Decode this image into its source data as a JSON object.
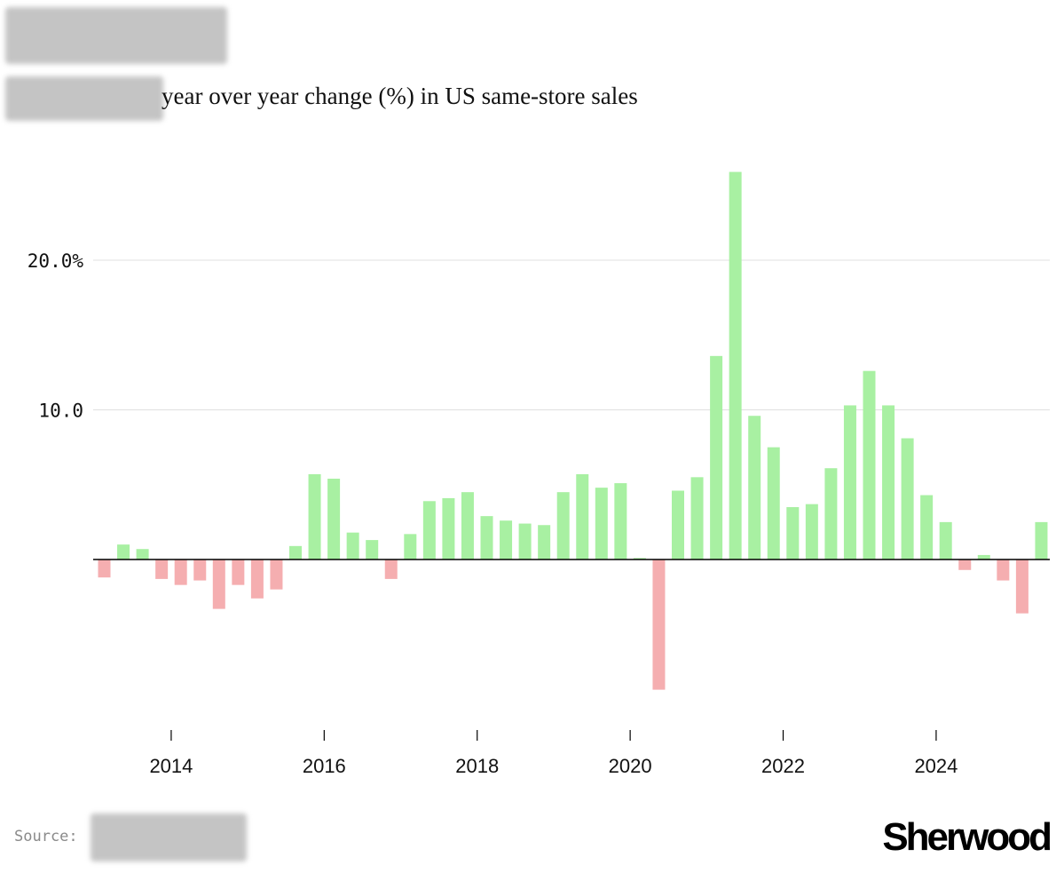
{
  "subtitle": "year over year change (%) in US same-store sales",
  "source_label": "Source:",
  "brand": "Sherwood",
  "colors": {
    "positive": "#a8f0a2",
    "negative": "#f5aeb0",
    "grid": "#e0e0e0",
    "axis": "#000000"
  },
  "chart_data": {
    "type": "bar",
    "title": "",
    "xlabel": "",
    "ylabel": "",
    "ylim": [
      -11,
      26
    ],
    "yticks": [
      {
        "value": 10,
        "label": "10.0"
      },
      {
        "value": 20,
        "label": "20.0%"
      }
    ],
    "xticks": [
      {
        "year": 2014,
        "label": "2014"
      },
      {
        "year": 2016,
        "label": "2016"
      },
      {
        "year": 2018,
        "label": "2018"
      },
      {
        "year": 2020,
        "label": "2020"
      },
      {
        "year": 2022,
        "label": "2022"
      },
      {
        "year": 2024,
        "label": "2024"
      }
    ],
    "grid": true,
    "x_unit": "quarter",
    "categories": [
      "2013 Q1",
      "2013 Q2",
      "2013 Q3",
      "2013 Q4",
      "2014 Q1",
      "2014 Q2",
      "2014 Q3",
      "2014 Q4",
      "2015 Q1",
      "2015 Q2",
      "2015 Q3",
      "2015 Q4",
      "2016 Q1",
      "2016 Q2",
      "2016 Q3",
      "2016 Q4",
      "2017 Q1",
      "2017 Q2",
      "2017 Q3",
      "2017 Q4",
      "2018 Q1",
      "2018 Q2",
      "2018 Q3",
      "2018 Q4",
      "2019 Q1",
      "2019 Q2",
      "2019 Q3",
      "2019 Q4",
      "2020 Q1",
      "2020 Q2",
      "2020 Q3",
      "2020 Q4",
      "2021 Q1",
      "2021 Q2",
      "2021 Q3",
      "2021 Q4",
      "2022 Q1",
      "2022 Q2",
      "2022 Q3",
      "2022 Q4",
      "2023 Q1",
      "2023 Q2",
      "2023 Q3",
      "2023 Q4",
      "2024 Q1",
      "2024 Q2",
      "2024 Q3",
      "2024 Q4",
      "2025 Q1",
      "2025 Q2"
    ],
    "values": [
      -1.2,
      1.0,
      0.7,
      -1.3,
      -1.7,
      -1.4,
      -3.3,
      -1.7,
      -2.6,
      -2.0,
      0.9,
      5.7,
      5.4,
      1.8,
      1.3,
      -1.3,
      1.7,
      3.9,
      4.1,
      4.5,
      2.9,
      2.6,
      2.4,
      2.3,
      4.5,
      5.7,
      4.8,
      5.1,
      0.1,
      -8.7,
      4.6,
      5.5,
      13.6,
      25.9,
      9.6,
      7.5,
      3.5,
      3.7,
      6.1,
      10.3,
      12.6,
      10.3,
      8.1,
      4.3,
      2.5,
      -0.7,
      0.3,
      -1.4,
      -3.6,
      2.5
    ]
  }
}
